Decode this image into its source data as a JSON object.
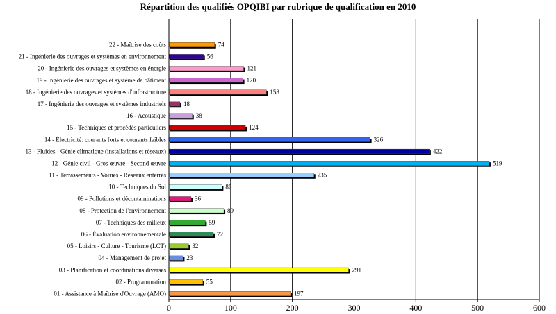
{
  "chart_data": {
    "type": "bar",
    "orientation": "horizontal",
    "title": "Répartition des qualifiés OPQIBI par rubrique de qualification en 2010",
    "xlabel": "",
    "ylabel": "",
    "xlim": [
      0,
      600
    ],
    "xticks": [
      "0",
      "100",
      "200",
      "300",
      "400",
      "500",
      "600"
    ],
    "grid": "vertical",
    "legend": "none",
    "categories": [
      "01 - Assistance à Maîtrise d'Ouvrage (AMO)",
      "02 - Programmation",
      "03 - Planification et coordinations diverses",
      "04 - Management de projet",
      "05 - Loisirs - Culture - Tourisme (LCT)",
      "06 - Évaluation environnementale",
      "07 - Techniques des milieux",
      "08 - Protection de l'environnement",
      "09 - Pollutions et décontaminations",
      "10 - Techniques du Sol",
      "11 - Terrassements - Voiries - Réseaux enterrés",
      "12 - Génie civil - Gros œuvre - Second œuvre",
      "13 - Fluides - Génie climatique (installations et réseaux)",
      "14 - Électricité: courants forts et courants faibles",
      "15 - Techniques et procédés particuliers",
      "16 - Acoustique",
      "17 - Ingénierie des ouvrages et systèmes industriels",
      "18 - Ingénierie des ouvrages et systèmes d'infrastructure",
      "19 - Ingénierie des ouvrages et système de bâtiment",
      "20 - Ingénierie des ouvrages et systèmes en énergie",
      "21 - Ingénierie des ouvrages et systèmes en environnement",
      "22 - Maîtrise des coûts"
    ],
    "values": [
      197,
      55,
      291,
      23,
      32,
      72,
      59,
      89,
      36,
      86,
      235,
      519,
      422,
      326,
      124,
      38,
      18,
      158,
      120,
      121,
      56,
      74
    ],
    "value_labels": [
      "197",
      "55",
      "291",
      "23",
      "32",
      "72",
      "59",
      "89",
      "36",
      "86",
      "235",
      "519",
      "422",
      "326",
      "124",
      "38",
      "18",
      "158",
      "120",
      "121",
      "56",
      "74"
    ],
    "colors": [
      "#F79646",
      "#FFC000",
      "#FFFF00",
      "#6A8EDC",
      "#9ACD32",
      "#2E8B57",
      "#33AA33",
      "#CCFFCC",
      "#E8177C",
      "#CCFFFF",
      "#99CCFF",
      "#00B0F0",
      "#0000A0",
      "#3366EE",
      "#CC0000",
      "#C9A0DC",
      "#993366",
      "#FF8080",
      "#CC66CC",
      "#FF99CC",
      "#330099",
      "#FF9900"
    ]
  }
}
